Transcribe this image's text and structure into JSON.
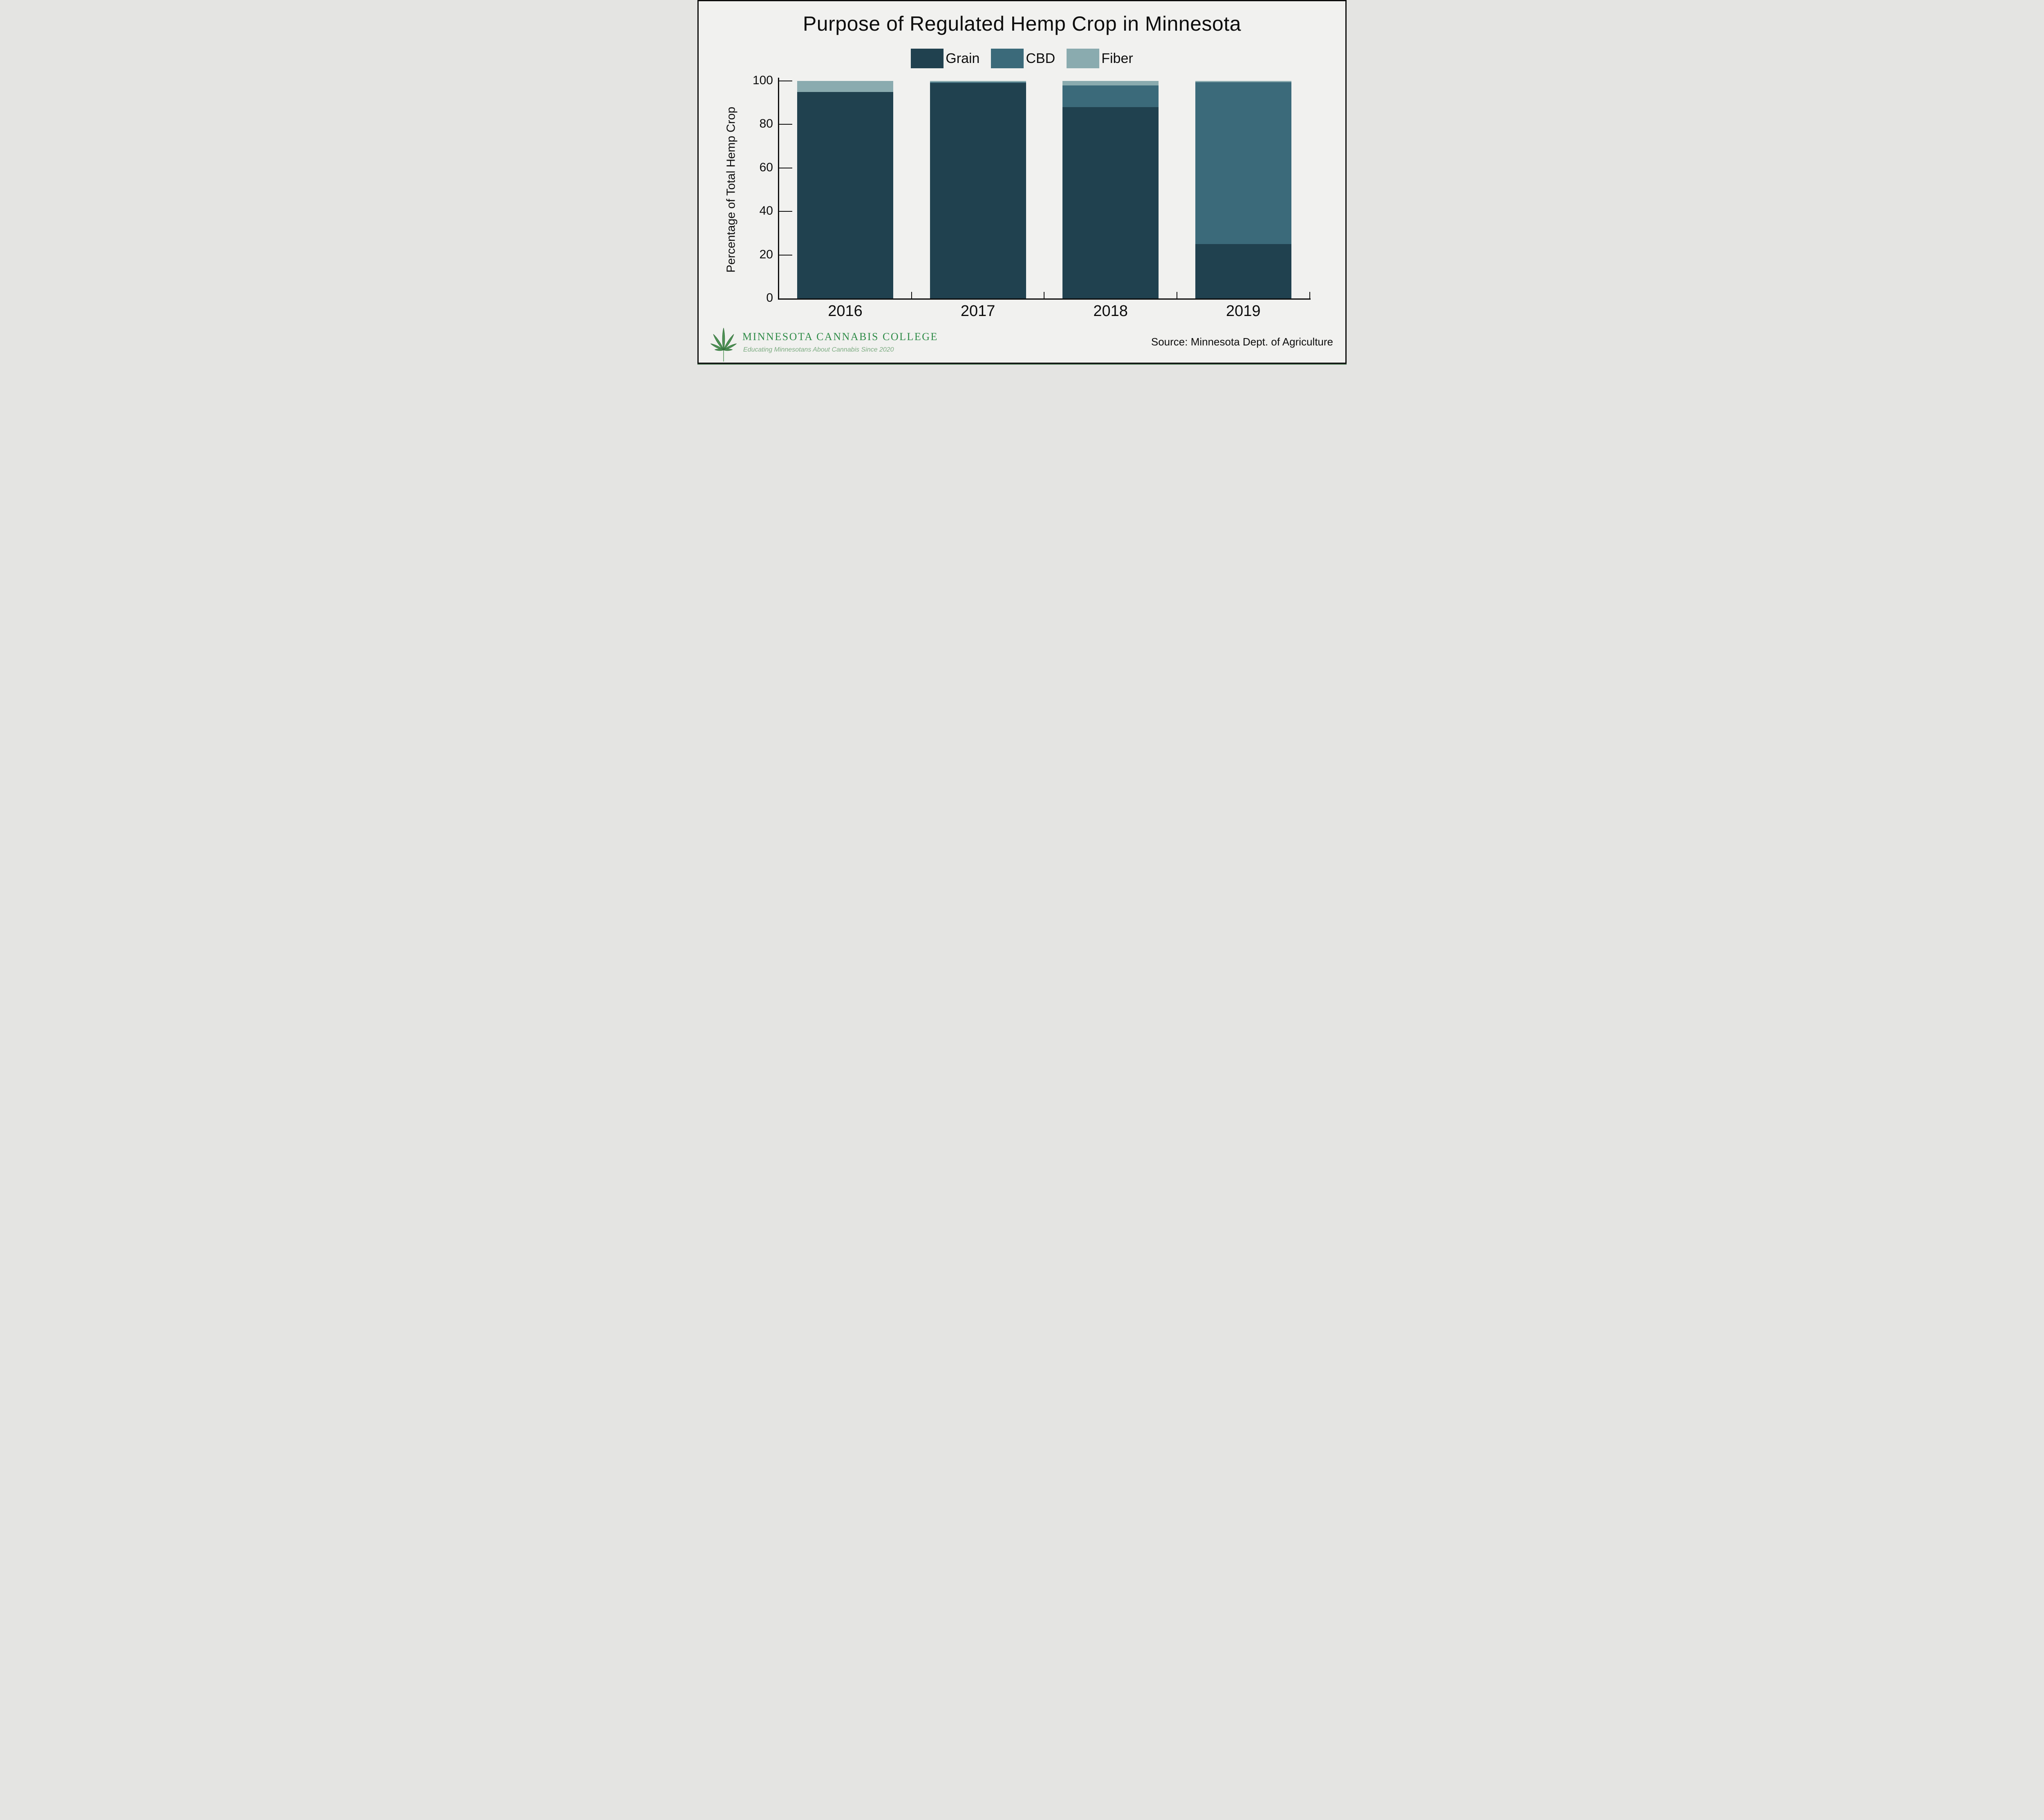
{
  "header": {
    "title": "Purpose of Regulated Hemp Crop in Minnesota"
  },
  "chart_data": {
    "type": "bar",
    "stacked": true,
    "title": "Purpose of Regulated Hemp Crop in Minnesota",
    "categories": [
      "2016",
      "2017",
      "2018",
      "2019"
    ],
    "series": [
      {
        "name": "Grain",
        "color": "#20414f",
        "values": [
          95,
          99,
          88,
          25
        ]
      },
      {
        "name": "CBD",
        "color": "#3b6a7a",
        "values": [
          0,
          0.5,
          10,
          74.5
        ]
      },
      {
        "name": "Fiber",
        "color": "#8aabaf",
        "values": [
          5,
          0.5,
          2,
          0.5
        ]
      }
    ],
    "xlabel": "",
    "ylabel": "Percentage of Total Hemp Crop",
    "ylim": [
      0,
      100
    ],
    "yticks": [
      0,
      20,
      40,
      60,
      80,
      100
    ],
    "legend_position": "top",
    "grid": false
  },
  "footer": {
    "org_name": "MINNESOTA CANNABIS COLLEGE",
    "tagline": "Educating Minnesotans About Cannabis Since 2020",
    "source": "Source: Minnesota Dept. of Agriculture"
  },
  "colors": {
    "background": "#f1f1ef",
    "axis": "#0c0c0c",
    "frame_border": "#0c0c0c",
    "frame_accent_green": "#4a7350",
    "logo_green": "#2e8b47",
    "tagline_green": "#7dac82",
    "grain": "#20414f",
    "cbd": "#3b6a7a",
    "fiber": "#8aabaf"
  }
}
